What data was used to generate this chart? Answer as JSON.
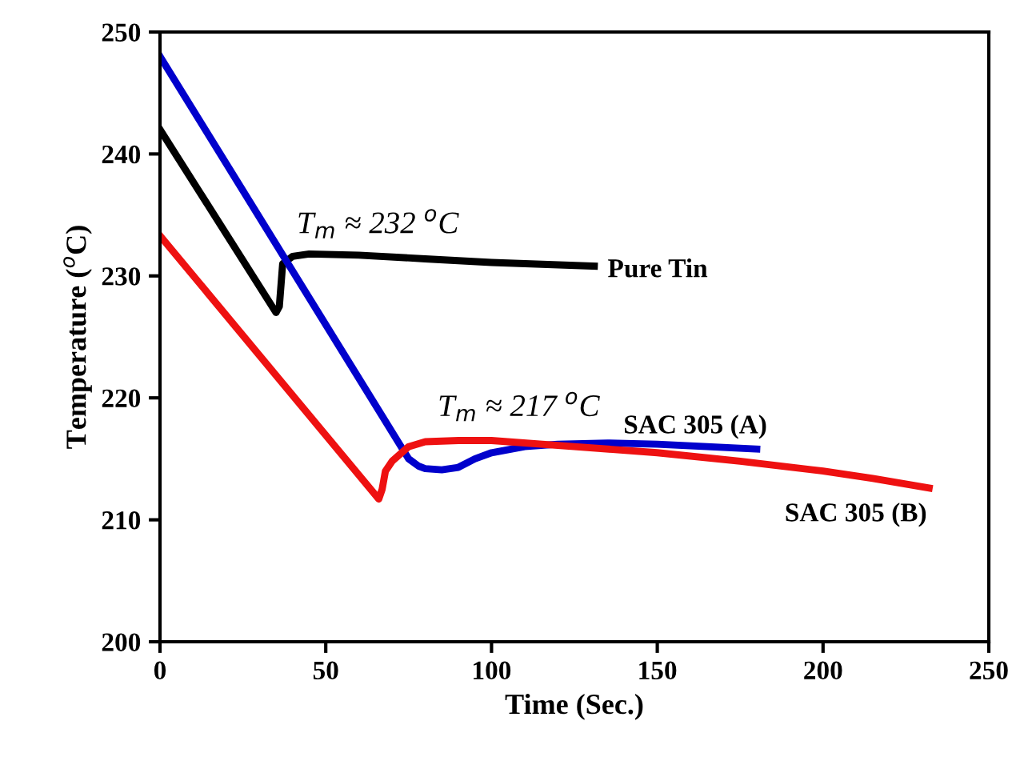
{
  "chart_data": {
    "type": "line",
    "xlabel": "Time (Sec.)",
    "ylabel": "Temperature ($^{o}$C)",
    "xlim": [
      0,
      250
    ],
    "ylim": [
      200,
      250
    ],
    "xticks": [
      0,
      50,
      100,
      150,
      200,
      250
    ],
    "yticks": [
      200,
      210,
      220,
      230,
      240,
      250
    ],
    "grid": false,
    "legend": false,
    "marker": "none",
    "line_style": "solid",
    "series": [
      {
        "name": "Pure Tin",
        "color": "#000000",
        "x": [
          0,
          35,
          36,
          37,
          40,
          45,
          60,
          80,
          100,
          131
        ],
        "values": [
          242,
          227,
          227.5,
          231,
          231.6,
          231.8,
          231.7,
          231.4,
          231.1,
          230.8
        ]
      },
      {
        "name": "SAC 305 (A)",
        "color": "#0000cc",
        "x": [
          0,
          75,
          78,
          80,
          85,
          90,
          95,
          100,
          110,
          120,
          135,
          150,
          165,
          180
        ],
        "values": [
          248,
          215,
          214.4,
          214.2,
          214.1,
          214.3,
          215,
          215.5,
          216,
          216.2,
          216.3,
          216.2,
          216,
          215.8
        ]
      },
      {
        "name": "SAC 305 (B)",
        "color": "#ee1111",
        "x": [
          0,
          66,
          67,
          68,
          70,
          75,
          80,
          90,
          100,
          125,
          150,
          175,
          200,
          215,
          232
        ],
        "values": [
          233.3,
          211.7,
          212.5,
          214,
          214.8,
          216,
          216.4,
          216.5,
          216.5,
          216,
          215.5,
          214.8,
          214,
          213.4,
          212.6
        ]
      }
    ],
    "annotations": [
      "T$_{m}$ ≈ 232 $^{o}$C",
      "T$_{m}$ ≈ 217 $^{o}$C"
    ]
  }
}
